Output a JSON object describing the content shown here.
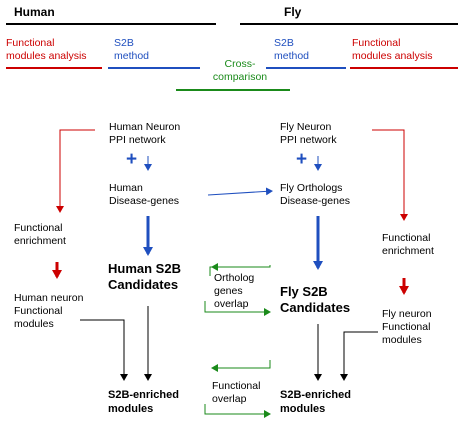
{
  "headers": {
    "human": "Human",
    "fly": "Fly",
    "human_functional": "Functional\nmodules analysis",
    "human_s2b": "S2B\nmethod",
    "cross": "Cross-\ncomparison",
    "fly_s2b": "S2B\nmethod",
    "fly_functional": "Functional\nmodules analysis"
  },
  "human": {
    "ppi": "Human Neuron\nPPI network",
    "plus": "+",
    "disease": "Human\nDisease-genes",
    "candidates": "Human S2B\nCandidates",
    "enrichment": "Functional\nenrichment",
    "modules": "Human neuron\nFunctional\nmodules",
    "enriched": "S2B-enriched\nmodules"
  },
  "fly": {
    "ppi": "Fly Neuron\nPPI network",
    "plus": "+",
    "disease": "Fly Orthologs\nDisease-genes",
    "candidates": "Fly S2B\nCandidates",
    "enrichment": "Functional\nenrichment",
    "modules": "Fly neuron\nFunctional\nmodules",
    "enriched": "S2B-enriched\nmodules"
  },
  "cross": {
    "ortholog_overlap": "Ortholog\ngenes\noverlap",
    "functional_overlap": "Functional\noverlap"
  },
  "colors": {
    "red": "#cc0000",
    "blue": "#1f4fbf",
    "green": "#1a8a1a",
    "black": "#000000"
  }
}
